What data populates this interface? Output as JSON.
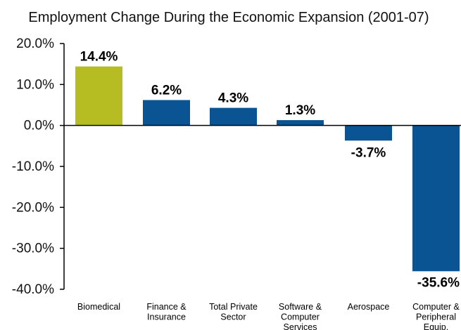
{
  "chart_data": {
    "type": "bar",
    "title": "Employment Change During the Economic Expansion (2001-07)",
    "xlabel": "",
    "ylabel": "",
    "ylim": [
      -40,
      20
    ],
    "yticks": [
      20,
      10,
      0,
      -10,
      -20,
      -30,
      -40
    ],
    "ytick_labels": [
      "20.0%",
      "10.0%",
      "0.0%",
      "-10.0%",
      "-20.0%",
      "-30.0%",
      "-40.0%"
    ],
    "categories": [
      [
        "Biomedical"
      ],
      [
        "Finance &",
        "Insurance"
      ],
      [
        "Total Private",
        "Sector"
      ],
      [
        "Software &",
        "Computer",
        "Services"
      ],
      [
        "Aerospace"
      ],
      [
        "Computer &",
        "Peripheral",
        "Equip."
      ]
    ],
    "values": [
      14.4,
      6.2,
      4.3,
      1.3,
      -3.7,
      -35.6
    ],
    "data_labels": [
      "14.4%",
      "6.2%",
      "4.3%",
      "1.3%",
      "-3.7%",
      "-35.6%"
    ],
    "colors": [
      "#b5bd22",
      "#0b5493",
      "#0b5493",
      "#0b5493",
      "#0b5493",
      "#0b5493"
    ],
    "grid": false,
    "legend": "none"
  }
}
